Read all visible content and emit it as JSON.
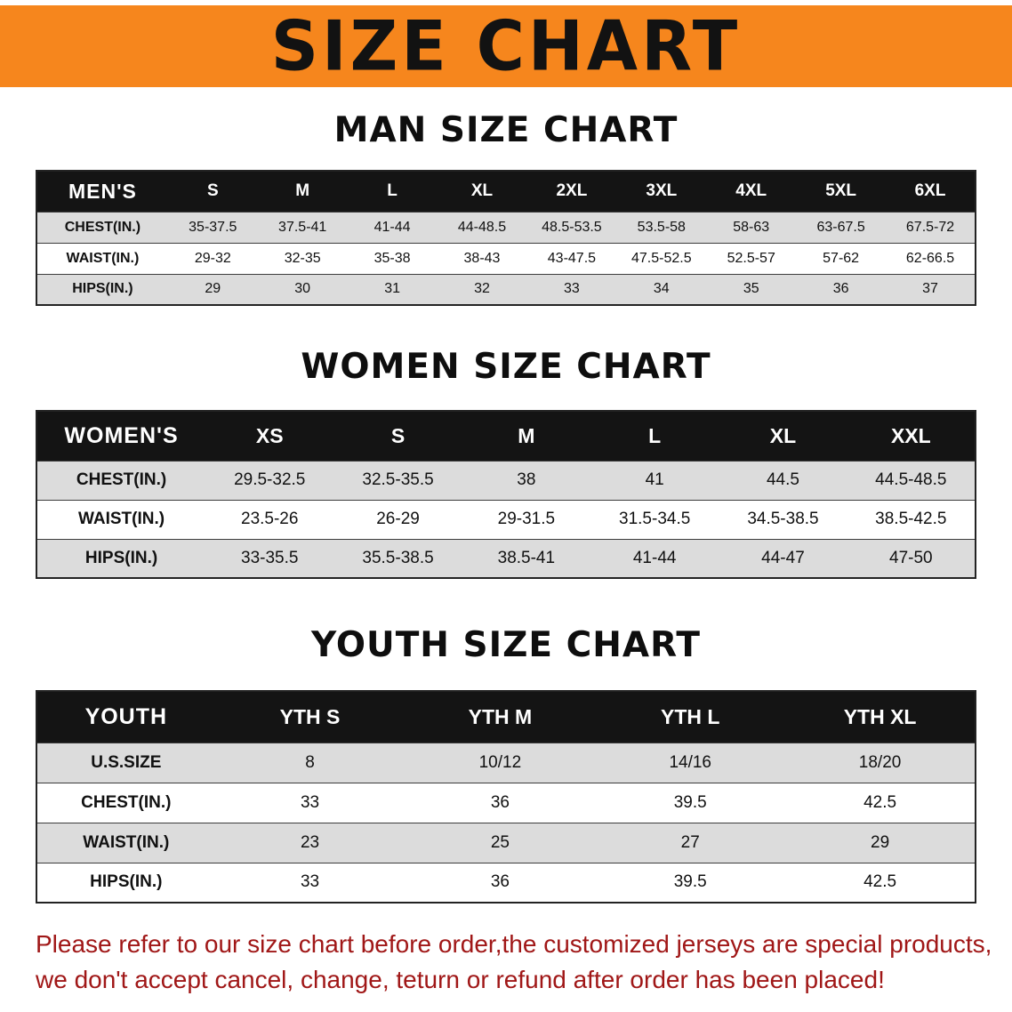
{
  "banner": {
    "title": "SIZE CHART"
  },
  "sections": [
    {
      "heading": "MAN SIZE CHART",
      "table": {
        "header": [
          "MEN'S",
          "S",
          "M",
          "L",
          "XL",
          "2XL",
          "3XL",
          "4XL",
          "5XL",
          "6XL"
        ],
        "rows": [
          [
            "CHEST(IN.)",
            "35-37.5",
            "37.5-41",
            "41-44",
            "44-48.5",
            "48.5-53.5",
            "53.5-58",
            "58-63",
            "63-67.5",
            "67.5-72"
          ],
          [
            "WAIST(IN.)",
            "29-32",
            "32-35",
            "35-38",
            "38-43",
            "43-47.5",
            "47.5-52.5",
            "52.5-57",
            "57-62",
            "62-66.5"
          ],
          [
            "HIPS(IN.)",
            "29",
            "30",
            "31",
            "32",
            "33",
            "34",
            "35",
            "36",
            "37"
          ]
        ]
      }
    },
    {
      "heading": "WOMEN SIZE CHART",
      "table": {
        "header": [
          "WOMEN'S",
          "XS",
          "S",
          "M",
          "L",
          "XL",
          "XXL"
        ],
        "rows": [
          [
            "CHEST(IN.)",
            "29.5-32.5",
            "32.5-35.5",
            "38",
            "41",
            "44.5",
            "44.5-48.5"
          ],
          [
            "WAIST(IN.)",
            "23.5-26",
            "26-29",
            "29-31.5",
            "31.5-34.5",
            "34.5-38.5",
            "38.5-42.5"
          ],
          [
            "HIPS(IN.)",
            "33-35.5",
            "35.5-38.5",
            "38.5-41",
            "41-44",
            "44-47",
            "47-50"
          ]
        ]
      }
    },
    {
      "heading": "YOUTH SIZE CHART",
      "table": {
        "header": [
          "YOUTH",
          "YTH S",
          "YTH M",
          "YTH L",
          "YTH XL"
        ],
        "rows": [
          [
            "U.S.SIZE",
            "8",
            "10/12",
            "14/16",
            "18/20"
          ],
          [
            "CHEST(IN.)",
            "33",
            "36",
            "39.5",
            "42.5"
          ],
          [
            "WAIST(IN.)",
            "23",
            "25",
            "27",
            "29"
          ],
          [
            "HIPS(IN.)",
            "33",
            "36",
            "39.5",
            "42.5"
          ]
        ]
      }
    }
  ],
  "disclaimer": {
    "line1": "Please refer to our size chart before order,the customized jerseys are special products,",
    "line2": "we don't accept cancel, change, teturn or refund after order has been placed!"
  },
  "colors": {
    "banner_bg": "#f6861d",
    "header_bg": "#141414",
    "row_alt_bg": "#dcdcdc",
    "disclaimer_color": "#a01717"
  }
}
